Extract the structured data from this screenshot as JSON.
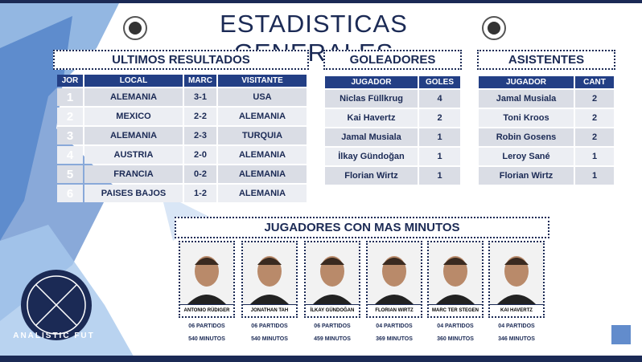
{
  "header": {
    "title": "ESTADISTICAS GENERALES"
  },
  "results": {
    "title": "ULTIMOS RESULTADOS",
    "headers": [
      "JOR",
      "LOCAL",
      "MARC",
      "VISITANTE"
    ],
    "rows": [
      [
        "1",
        "ALEMANIA",
        "3-1",
        "USA"
      ],
      [
        "2",
        "MEXICO",
        "2-2",
        "ALEMANIA"
      ],
      [
        "3",
        "ALEMANIA",
        "2-3",
        "TURQUIA"
      ],
      [
        "4",
        "AUSTRIA",
        "2-0",
        "ALEMANIA"
      ],
      [
        "5",
        "FRANCIA",
        "0-2",
        "ALEMANIA"
      ],
      [
        "6",
        "PAISES BAJOS",
        "1-2",
        "ALEMANIA"
      ]
    ]
  },
  "scorers": {
    "title": "GOLEADORES",
    "headers": [
      "JUGADOR",
      "GOLES"
    ],
    "rows": [
      [
        "Niclas Füllkrug",
        "4"
      ],
      [
        "Kai Havertz",
        "2"
      ],
      [
        "Jamal Musiala",
        "1"
      ],
      [
        "İlkay Gündoğan",
        "1"
      ],
      [
        "Florian Wirtz",
        "1"
      ]
    ]
  },
  "assists": {
    "title": "ASISTENTES",
    "headers": [
      "JUGADOR",
      "CANT"
    ],
    "rows": [
      [
        "Jamal Musiala",
        "2"
      ],
      [
        "Toni Kroos",
        "2"
      ],
      [
        "Robin Gosens",
        "2"
      ],
      [
        "Leroy Sané",
        "1"
      ],
      [
        "Florian Wirtz",
        "1"
      ]
    ]
  },
  "minutes": {
    "title": "JUGADORES CON MAS MINUTOS",
    "players": [
      {
        "name": "ANTONIO RÜDIGER",
        "matches": "06 PARTIDOS",
        "minutes": "540 MINUTOS"
      },
      {
        "name": "JONATHAN TAH",
        "matches": "06 PARTIDOS",
        "minutes": "540 MINUTOS"
      },
      {
        "name": "İLKAY GÜNDOĞAN",
        "matches": "06 PARTIDOS",
        "minutes": "459 MINUTOS"
      },
      {
        "name": "FLORIAN WIRTZ",
        "matches": "04 PARTIDOS",
        "minutes": "369 MINUTOS"
      },
      {
        "name": "MARC TER STEGEN",
        "matches": "04 PARTIDOS",
        "minutes": "360 MINUTOS"
      },
      {
        "name": "KAI HAVERTZ",
        "matches": "04 PARTIDOS",
        "minutes": "346 MINUTOS"
      }
    ]
  },
  "logo": {
    "text": "ANALISTIC FUT"
  }
}
